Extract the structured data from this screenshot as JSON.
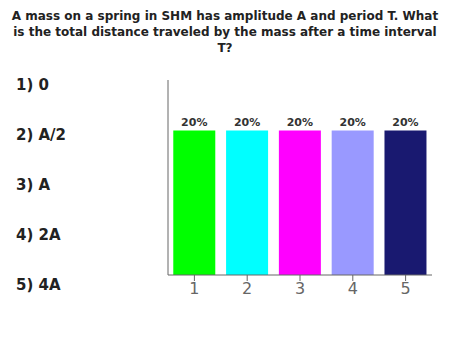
{
  "chart_data": {
    "type": "bar",
    "title": "A mass on a spring in SHM has amplitude A and period T. What is the total distance traveled by the mass after a time interval T?",
    "categories": [
      "1",
      "2",
      "3",
      "4",
      "5"
    ],
    "values": [
      20,
      20,
      20,
      20,
      20
    ],
    "value_labels": [
      "20%",
      "20%",
      "20%",
      "20%",
      "20%"
    ],
    "colors": [
      "#00FF00",
      "#00FFFF",
      "#FF00FF",
      "#9999FF",
      "#191970"
    ],
    "ylim": [
      0,
      27
    ],
    "data_labels": true,
    "tick_labels": "x",
    "annotations": [
      "1) 0",
      "2) A/2",
      "3) A",
      "4) 2A",
      "5) 4A"
    ]
  }
}
